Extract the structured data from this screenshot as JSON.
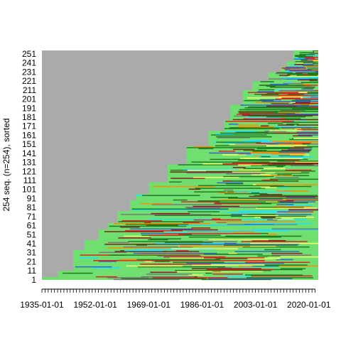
{
  "chart_data": {
    "type": "sequence-index-plot",
    "ylabel": "254 seq. (n=254), sorted",
    "xlabel": "",
    "n_sequences": 254,
    "x_range": [
      "1935-01-01",
      "2023-01-01"
    ],
    "y_range": [
      1,
      254
    ],
    "x_tick_labels": [
      "1935-01-01",
      "1952-01-01",
      "1969-01-01",
      "1986-01-01",
      "2003-01-01",
      "2020-01-01"
    ],
    "y_tick_labels": [
      "1",
      "11",
      "21",
      "31",
      "41",
      "51",
      "61",
      "71",
      "81",
      "91",
      "101",
      "111",
      "121",
      "131",
      "141",
      "151",
      "161",
      "171",
      "181",
      "191",
      "201",
      "211",
      "221",
      "231",
      "241",
      "251"
    ],
    "state_colors": {
      "missing": "#aaaaaa",
      "light-green": "#6fdf6f",
      "dark-green": "#1f7a1f",
      "red": "#e02020",
      "cyan": "#22e0ff",
      "orange": "#ff8c00",
      "yellow": "#ffff66",
      "blue": "#3366cc",
      "dark-red": "#8b1a1a",
      "grey-bar": "#777777"
    },
    "step_starts": [
      {
        "rows": [
          1,
          3
        ],
        "start_year": 1935
      },
      {
        "rows": [
          4,
          10
        ],
        "start_year": 1940
      },
      {
        "rows": [
          11,
          33
        ],
        "start_year": 1945
      },
      {
        "rows": [
          34,
          44
        ],
        "start_year": 1948.5
      },
      {
        "rows": [
          45,
          56
        ],
        "start_year": 1953
      },
      {
        "rows": [
          57,
          63
        ],
        "start_year": 1956
      },
      {
        "rows": [
          64,
          76
        ],
        "start_year": 1959
      },
      {
        "rows": [
          77,
          88
        ],
        "start_year": 1963
      },
      {
        "rows": [
          89,
          95
        ],
        "start_year": 1965
      },
      {
        "rows": [
          96,
          108
        ],
        "start_year": 1969
      },
      {
        "rows": [
          109,
          128
        ],
        "start_year": 1975
      },
      {
        "rows": [
          129,
          148
        ],
        "start_year": 1981
      },
      {
        "rows": [
          149,
          165
        ],
        "start_year": 1988
      },
      {
        "rows": [
          166,
          177
        ],
        "start_year": 1993
      },
      {
        "rows": [
          178,
          194
        ],
        "start_year": 1995
      },
      {
        "rows": [
          195,
          210
        ],
        "start_year": 1999
      },
      {
        "rows": [
          211,
          220
        ],
        "start_year": 2002
      },
      {
        "rows": [
          221,
          230
        ],
        "start_year": 2007
      },
      {
        "rows": [
          231,
          236
        ],
        "start_year": 2011
      },
      {
        "rows": [
          237,
          242
        ],
        "start_year": 2013
      },
      {
        "rows": [
          243,
          254
        ],
        "start_year": 2015
      }
    ],
    "grid": false,
    "legend": "none"
  }
}
